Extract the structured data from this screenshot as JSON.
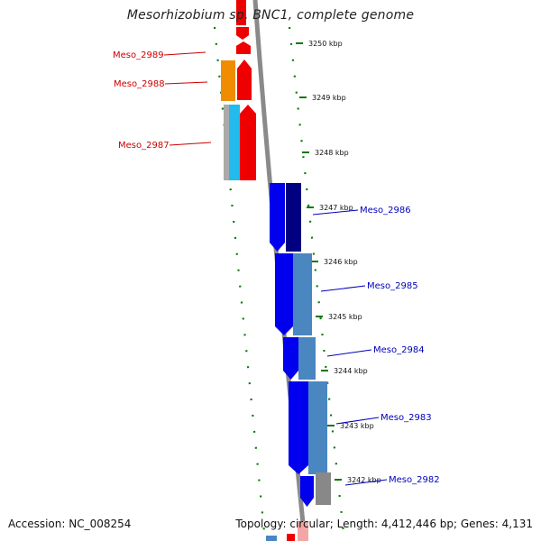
{
  "header": {
    "title": "Mesorhizobium sp. BNC1, complete genome"
  },
  "footer": {
    "accession": "Accession: NC_008254",
    "summary": "Topology: circular; Length: 4,412,446 bp; Genes: 4,131"
  },
  "ticks": [
    "3250 kbp",
    "3249 kbp",
    "3248 kbp",
    "3247 kbp",
    "3246 kbp",
    "3245 kbp",
    "3244 kbp",
    "3243 kbp",
    "3242 kbp"
  ],
  "gene_labels": {
    "red": [
      "Meso_2989",
      "Meso_2988",
      "Meso_2987"
    ],
    "blue": [
      "Meso_2986",
      "Meso_2985",
      "Meso_2984",
      "Meso_2983",
      "Meso_2982"
    ]
  },
  "colors": {
    "forward_cds": "#ee0000",
    "reverse_cds": "#0000ee",
    "orange_cds": "#f08c00",
    "cyan_cds": "#22bbee",
    "steel_blue": "#4a86c0",
    "navy": "#000080",
    "gray": "#888888",
    "tick_green": "#117711",
    "backbone": "#8a8a8a"
  }
}
